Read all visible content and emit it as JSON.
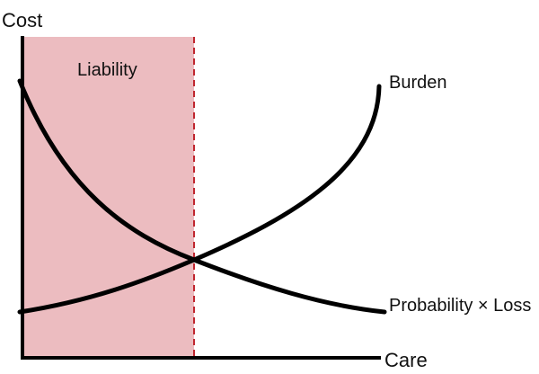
{
  "axes": {
    "y_title": "Cost",
    "x_title": "Care"
  },
  "region": {
    "label": "Liability"
  },
  "curves": {
    "burden": "Burden",
    "probability_loss": "Probability × Loss"
  },
  "colors": {
    "region_fill": "#ecbcc0",
    "threshold_line": "#c0262f",
    "curves": "#000000",
    "axes": "#000000"
  }
}
